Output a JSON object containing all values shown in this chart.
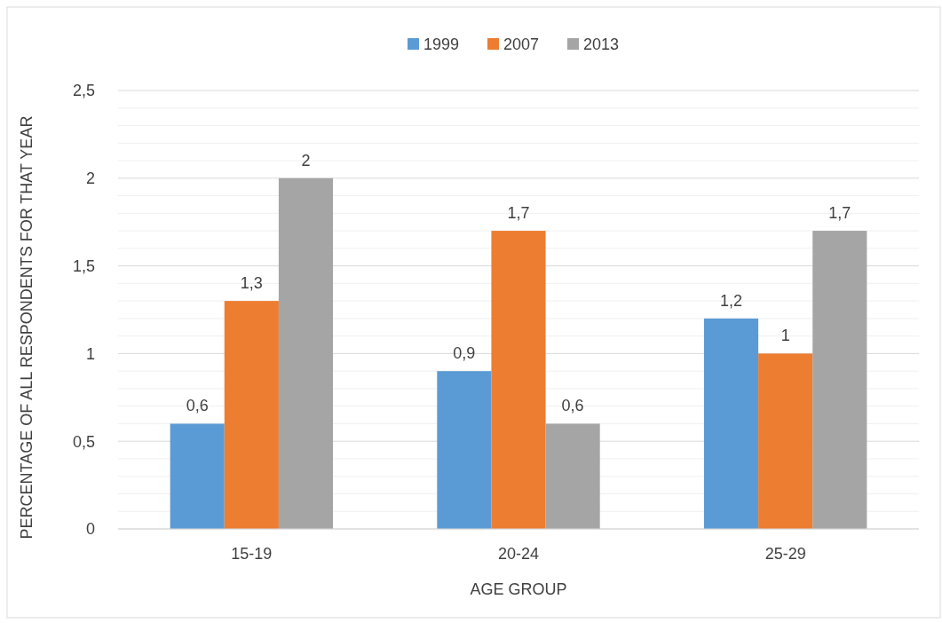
{
  "chart_data": {
    "type": "bar",
    "xlabel": "AGE GROUP",
    "ylabel": "PERCENTAGE OF ALL RESPONDENTS FOR THAT YEAR",
    "categories": [
      "15-19",
      "20-24",
      "25-29"
    ],
    "series": [
      {
        "name": "1999",
        "color": "#5b9bd5",
        "values": [
          0.6,
          0.9,
          1.2
        ],
        "value_labels": [
          "0,6",
          "0,9",
          "1,2"
        ]
      },
      {
        "name": "2007",
        "color": "#ed7d31",
        "values": [
          1.3,
          1.7,
          1
        ],
        "value_labels": [
          "1,3",
          "1,7",
          "1"
        ]
      },
      {
        "name": "2013",
        "color": "#a5a5a5",
        "values": [
          2,
          0.6,
          1.7
        ],
        "value_labels": [
          "2",
          "0,6",
          "1,7"
        ]
      }
    ],
    "ylim": [
      0,
      2.5
    ],
    "yticks": [
      0,
      {
        "value": 0.1,
        "label": null
      },
      {
        "value": 0.2,
        "label": null
      },
      {
        "value": 0.3,
        "label": null
      },
      {
        "value": 0.4,
        "label": null
      },
      {
        "value": 0.5,
        "label": "0,5"
      },
      {
        "value": 0.6,
        "label": null
      },
      {
        "value": 0.7,
        "label": null
      },
      {
        "value": 0.8,
        "label": null
      },
      {
        "value": 0.9,
        "label": null
      },
      1,
      {
        "value": 1.1,
        "label": null
      },
      {
        "value": 1.2,
        "label": null
      },
      {
        "value": 1.3,
        "label": null
      },
      {
        "value": 1.4,
        "label": null
      },
      {
        "value": 1.5,
        "label": "1,5"
      },
      {
        "value": 1.6,
        "label": null
      },
      {
        "value": 1.7,
        "label": null
      },
      {
        "value": 1.8,
        "label": null
      },
      {
        "value": 1.9,
        "label": null
      },
      2,
      {
        "value": 2.1,
        "label": null
      },
      {
        "value": 2.2,
        "label": null
      },
      {
        "value": 2.3,
        "label": null
      },
      {
        "value": 2.4,
        "label": null
      },
      {
        "value": 2.5,
        "label": "2,5"
      }
    ],
    "grid": "y",
    "legend": "top"
  }
}
